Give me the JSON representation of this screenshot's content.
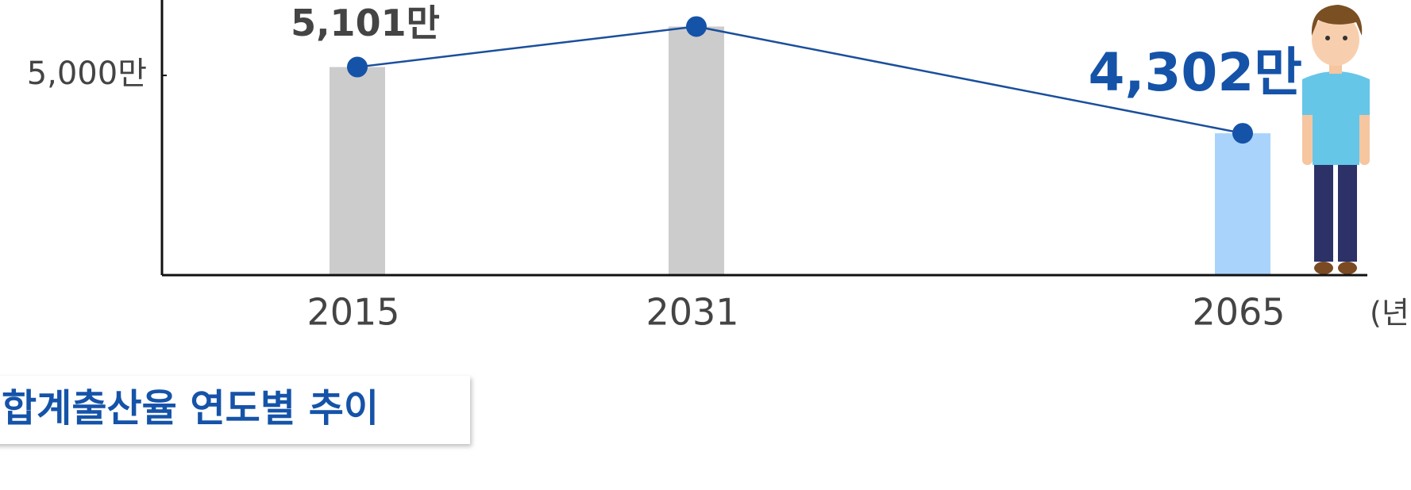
{
  "chart_data": {
    "type": "bar_line",
    "categories": [
      "2015",
      "2031",
      "2065"
    ],
    "values": [
      5101,
      5590,
      4302
    ],
    "value_labels": [
      "5,101만",
      null,
      "4,302만"
    ],
    "bar_colors": [
      "#cccccc",
      "#cccccc",
      "#a9d3fb"
    ],
    "line_color": "#1a4f9c",
    "ylim": [
      2590,
      5910
    ],
    "yticks": [
      {
        "value": 5000,
        "label": "5,000만"
      }
    ],
    "x_label": "(년)"
  },
  "heading": "합계출산율 연도별 추이"
}
